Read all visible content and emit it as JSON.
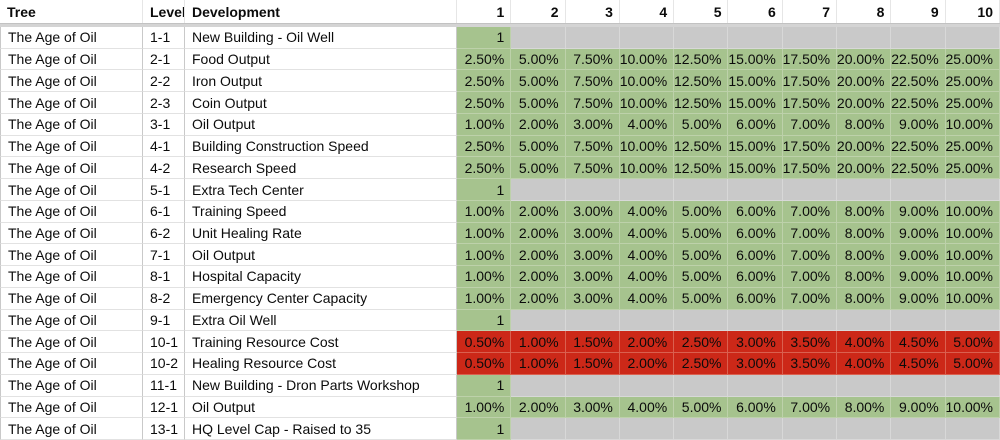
{
  "sheet": {
    "headers": {
      "tree": "Tree",
      "level": "Level",
      "development": "Development",
      "level_numbers": [
        "1",
        "2",
        "3",
        "4",
        "5",
        "6",
        "7",
        "8",
        "9",
        "10"
      ]
    },
    "rows": [
      {
        "tree": "The Age of Oil",
        "level": "1-1",
        "development": "New Building - Oil Well",
        "type": "unlock",
        "values": [
          "1",
          "",
          "",
          "",
          "",
          "",
          "",
          "",
          "",
          ""
        ]
      },
      {
        "tree": "The Age of Oil",
        "level": "2-1",
        "development": "Food Output",
        "type": "positive",
        "values": [
          "2.50%",
          "5.00%",
          "7.50%",
          "10.00%",
          "12.50%",
          "15.00%",
          "17.50%",
          "20.00%",
          "22.50%",
          "25.00%"
        ]
      },
      {
        "tree": "The Age of Oil",
        "level": "2-2",
        "development": "Iron Output",
        "type": "positive",
        "values": [
          "2.50%",
          "5.00%",
          "7.50%",
          "10.00%",
          "12.50%",
          "15.00%",
          "17.50%",
          "20.00%",
          "22.50%",
          "25.00%"
        ]
      },
      {
        "tree": "The Age of Oil",
        "level": "2-3",
        "development": "Coin Output",
        "type": "positive",
        "values": [
          "2.50%",
          "5.00%",
          "7.50%",
          "10.00%",
          "12.50%",
          "15.00%",
          "17.50%",
          "20.00%",
          "22.50%",
          "25.00%"
        ]
      },
      {
        "tree": "The Age of Oil",
        "level": "3-1",
        "development": "Oil Output",
        "type": "positive",
        "values": [
          "1.00%",
          "2.00%",
          "3.00%",
          "4.00%",
          "5.00%",
          "6.00%",
          "7.00%",
          "8.00%",
          "9.00%",
          "10.00%"
        ]
      },
      {
        "tree": "The Age of Oil",
        "level": "4-1",
        "development": "Building Construction Speed",
        "type": "positive",
        "values": [
          "2.50%",
          "5.00%",
          "7.50%",
          "10.00%",
          "12.50%",
          "15.00%",
          "17.50%",
          "20.00%",
          "22.50%",
          "25.00%"
        ]
      },
      {
        "tree": "The Age of Oil",
        "level": "4-2",
        "development": "Research Speed",
        "type": "positive",
        "values": [
          "2.50%",
          "5.00%",
          "7.50%",
          "10.00%",
          "12.50%",
          "15.00%",
          "17.50%",
          "20.00%",
          "22.50%",
          "25.00%"
        ]
      },
      {
        "tree": "The Age of Oil",
        "level": "5-1",
        "development": "Extra Tech Center",
        "type": "unlock",
        "values": [
          "1",
          "",
          "",
          "",
          "",
          "",
          "",
          "",
          "",
          ""
        ]
      },
      {
        "tree": "The Age of Oil",
        "level": "6-1",
        "development": "Training Speed",
        "type": "positive",
        "values": [
          "1.00%",
          "2.00%",
          "3.00%",
          "4.00%",
          "5.00%",
          "6.00%",
          "7.00%",
          "8.00%",
          "9.00%",
          "10.00%"
        ]
      },
      {
        "tree": "The Age of Oil",
        "level": "6-2",
        "development": "Unit Healing Rate",
        "type": "positive",
        "values": [
          "1.00%",
          "2.00%",
          "3.00%",
          "4.00%",
          "5.00%",
          "6.00%",
          "7.00%",
          "8.00%",
          "9.00%",
          "10.00%"
        ]
      },
      {
        "tree": "The Age of Oil",
        "level": "7-1",
        "development": "Oil Output",
        "type": "positive",
        "values": [
          "1.00%",
          "2.00%",
          "3.00%",
          "4.00%",
          "5.00%",
          "6.00%",
          "7.00%",
          "8.00%",
          "9.00%",
          "10.00%"
        ]
      },
      {
        "tree": "The Age of Oil",
        "level": "8-1",
        "development": "Hospital Capacity",
        "type": "positive",
        "values": [
          "1.00%",
          "2.00%",
          "3.00%",
          "4.00%",
          "5.00%",
          "6.00%",
          "7.00%",
          "8.00%",
          "9.00%",
          "10.00%"
        ]
      },
      {
        "tree": "The Age of Oil",
        "level": "8-2",
        "development": "Emergency Center Capacity",
        "type": "positive",
        "values": [
          "1.00%",
          "2.00%",
          "3.00%",
          "4.00%",
          "5.00%",
          "6.00%",
          "7.00%",
          "8.00%",
          "9.00%",
          "10.00%"
        ]
      },
      {
        "tree": "The Age of Oil",
        "level": "9-1",
        "development": "Extra Oil Well",
        "type": "unlock",
        "values": [
          "1",
          "",
          "",
          "",
          "",
          "",
          "",
          "",
          "",
          ""
        ]
      },
      {
        "tree": "The Age of Oil",
        "level": "10-1",
        "development": "Training Resource Cost",
        "type": "negative",
        "values": [
          "0.50%",
          "1.00%",
          "1.50%",
          "2.00%",
          "2.50%",
          "3.00%",
          "3.50%",
          "4.00%",
          "4.50%",
          "5.00%"
        ]
      },
      {
        "tree": "The Age of Oil",
        "level": "10-2",
        "development": "Healing Resource Cost",
        "type": "negative",
        "values": [
          "0.50%",
          "1.00%",
          "1.50%",
          "2.00%",
          "2.50%",
          "3.00%",
          "3.50%",
          "4.00%",
          "4.50%",
          "5.00%"
        ]
      },
      {
        "tree": "The Age of Oil",
        "level": "11-1",
        "development": "New Building - Dron Parts Workshop",
        "type": "unlock",
        "values": [
          "1",
          "",
          "",
          "",
          "",
          "",
          "",
          "",
          "",
          ""
        ]
      },
      {
        "tree": "The Age of Oil",
        "level": "12-1",
        "development": "Oil Output",
        "type": "positive",
        "values": [
          "1.00%",
          "2.00%",
          "3.00%",
          "4.00%",
          "5.00%",
          "6.00%",
          "7.00%",
          "8.00%",
          "9.00%",
          "10.00%"
        ]
      },
      {
        "tree": "The Age of Oil",
        "level": "13-1",
        "development": "HQ Level Cap - Raised to 35",
        "type": "unlock",
        "values": [
          "1",
          "",
          "",
          "",
          "",
          "",
          "",
          "",
          "",
          ""
        ]
      }
    ]
  },
  "colors": {
    "positive_fill": "#a6c38e",
    "positive_grid": "#bdd1aa",
    "locked_fill": "#c9c9c9",
    "locked_grid": "#d8d8d8",
    "negative_fill": "#cc2818",
    "negative_grid": "#da604f"
  }
}
